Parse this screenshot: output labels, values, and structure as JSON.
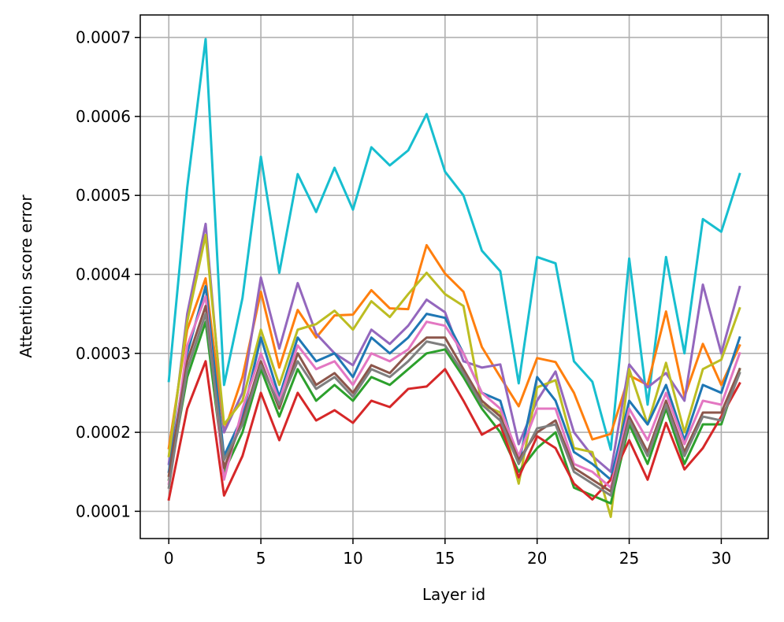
{
  "chart_data": {
    "type": "line",
    "title": "",
    "xlabel": "Layer id",
    "ylabel": "Attention score error",
    "xlim": [
      -1.55,
      32.55
    ],
    "ylim": [
      6.55e-05,
      0.0007285
    ],
    "xticks": [
      0,
      5,
      10,
      15,
      20,
      25,
      30
    ],
    "xtick_labels": [
      "0",
      "5",
      "10",
      "15",
      "20",
      "25",
      "30"
    ],
    "yticks": [
      0.0001,
      0.0002,
      0.0003,
      0.0004,
      0.0005,
      0.0006,
      0.0007
    ],
    "ytick_labels": [
      "0.0001",
      "0.0002",
      "0.0003",
      "0.0004",
      "0.0005",
      "0.0006",
      "0.0007"
    ],
    "grid": true,
    "legend": "none",
    "x": [
      0,
      1,
      2,
      3,
      4,
      5,
      6,
      7,
      8,
      9,
      10,
      11,
      12,
      13,
      14,
      15,
      16,
      17,
      18,
      19,
      20,
      21,
      22,
      23,
      24,
      25,
      26,
      27,
      28,
      29,
      30,
      31
    ],
    "series": [
      {
        "color": "#17becf",
        "values": [
          0.000265,
          0.00051,
          0.000698,
          0.00026,
          0.00037,
          0.000549,
          0.000402,
          0.000527,
          0.000479,
          0.000535,
          0.000482,
          0.000561,
          0.000538,
          0.000557,
          0.000603,
          0.00053,
          0.0005,
          0.00043,
          0.000404,
          0.000262,
          0.000422,
          0.000414,
          0.00029,
          0.000264,
          0.000178,
          0.00042,
          0.000235,
          0.000422,
          0.0003,
          0.00047,
          0.000454,
          0.000527
        ]
      },
      {
        "color": "#ff7f0e",
        "values": [
          0.00018,
          0.00033,
          0.000395,
          0.0002,
          0.00027,
          0.000378,
          0.000282,
          0.000355,
          0.00032,
          0.000348,
          0.000349,
          0.00038,
          0.000357,
          0.000356,
          0.000437,
          0.000401,
          0.000378,
          0.000308,
          0.00027,
          0.000233,
          0.000294,
          0.000289,
          0.00025,
          0.000191,
          0.000198,
          0.000272,
          0.00026,
          0.000353,
          0.000245,
          0.000312,
          0.00026,
          0.00031
        ]
      },
      {
        "color": "#9467bd",
        "values": [
          0.00016,
          0.00035,
          0.000464,
          0.0002,
          0.00025,
          0.000396,
          0.000306,
          0.000389,
          0.000325,
          0.0003,
          0.000285,
          0.00033,
          0.000312,
          0.000335,
          0.000368,
          0.000352,
          0.00029,
          0.000282,
          0.000286,
          0.000185,
          0.00024,
          0.000277,
          0.0002,
          0.00017,
          0.00015,
          0.000286,
          0.000257,
          0.000275,
          0.00024,
          0.000387,
          0.0003,
          0.000384
        ]
      },
      {
        "color": "#bcbd22",
        "values": [
          0.00017,
          0.00034,
          0.00045,
          0.00021,
          0.00024,
          0.00033,
          0.00026,
          0.00033,
          0.000337,
          0.000354,
          0.00033,
          0.000366,
          0.000346,
          0.000375,
          0.000402,
          0.000375,
          0.00036,
          0.000235,
          0.000225,
          0.000135,
          0.000257,
          0.000266,
          0.00018,
          0.000175,
          9.3e-05,
          0.00028,
          0.00021,
          0.000288,
          0.0002,
          0.00028,
          0.000292,
          0.000357
        ]
      },
      {
        "color": "#1f77b4",
        "values": [
          0.00015,
          0.0003,
          0.000385,
          0.00017,
          0.00022,
          0.00032,
          0.000245,
          0.00032,
          0.00029,
          0.0003,
          0.00027,
          0.00032,
          0.0003,
          0.00032,
          0.00035,
          0.000345,
          0.0003,
          0.00025,
          0.00024,
          0.00016,
          0.00027,
          0.00024,
          0.000175,
          0.00016,
          0.00014,
          0.00024,
          0.00021,
          0.00026,
          0.00019,
          0.00026,
          0.00025,
          0.00032
        ]
      },
      {
        "color": "#2ca02c",
        "values": [
          0.00014,
          0.00027,
          0.00034,
          0.00015,
          0.0002,
          0.00028,
          0.00022,
          0.00028,
          0.00024,
          0.00026,
          0.00024,
          0.00027,
          0.00026,
          0.00028,
          0.0003,
          0.000305,
          0.00027,
          0.00023,
          0.0002,
          0.00015,
          0.00018,
          0.0002,
          0.00013,
          0.00012,
          0.00011,
          0.00021,
          0.00016,
          0.00023,
          0.00016,
          0.00021,
          0.00021,
          0.00028
        ]
      },
      {
        "color": "#d62728",
        "values": [
          0.000115,
          0.00023,
          0.00029,
          0.00012,
          0.00017,
          0.00025,
          0.00019,
          0.00025,
          0.000215,
          0.000228,
          0.000212,
          0.00024,
          0.000232,
          0.000255,
          0.000258,
          0.00028,
          0.00024,
          0.000197,
          0.00021,
          0.000143,
          0.000195,
          0.00018,
          0.000135,
          0.000115,
          0.00014,
          0.00019,
          0.00014,
          0.000212,
          0.000153,
          0.00018,
          0.00022,
          0.000262
        ]
      },
      {
        "color": "#e377c2",
        "values": [
          0.000135,
          0.00031,
          0.000372,
          0.00014,
          0.00023,
          0.0003,
          0.00024,
          0.00031,
          0.00028,
          0.00029,
          0.00026,
          0.0003,
          0.00029,
          0.000305,
          0.00034,
          0.000335,
          0.0003,
          0.00025,
          0.00023,
          0.00017,
          0.00023,
          0.00023,
          0.00016,
          0.00015,
          0.00013,
          0.00023,
          0.00019,
          0.00025,
          0.000185,
          0.00024,
          0.000235,
          0.0003
        ]
      },
      {
        "color": "#8c564b",
        "values": [
          0.000145,
          0.00029,
          0.00036,
          0.000155,
          0.000215,
          0.00029,
          0.00023,
          0.0003,
          0.00026,
          0.000275,
          0.00025,
          0.000285,
          0.000275,
          0.0003,
          0.00032,
          0.00032,
          0.00028,
          0.00024,
          0.00022,
          0.000165,
          0.0002,
          0.000215,
          0.000155,
          0.00014,
          0.000125,
          0.00022,
          0.000175,
          0.00024,
          0.000175,
          0.000225,
          0.000225,
          0.00028
        ]
      },
      {
        "color": "#7f7f7f",
        "values": [
          0.00013,
          0.00028,
          0.00035,
          0.000165,
          0.00021,
          0.000285,
          0.000235,
          0.00029,
          0.000255,
          0.00027,
          0.000245,
          0.00028,
          0.00027,
          0.00029,
          0.000315,
          0.00031,
          0.000275,
          0.000235,
          0.000215,
          0.00016,
          0.000205,
          0.00021,
          0.00015,
          0.000135,
          0.00012,
          0.000215,
          0.00017,
          0.000235,
          0.00017,
          0.00022,
          0.000215,
          0.000275
        ]
      }
    ]
  }
}
